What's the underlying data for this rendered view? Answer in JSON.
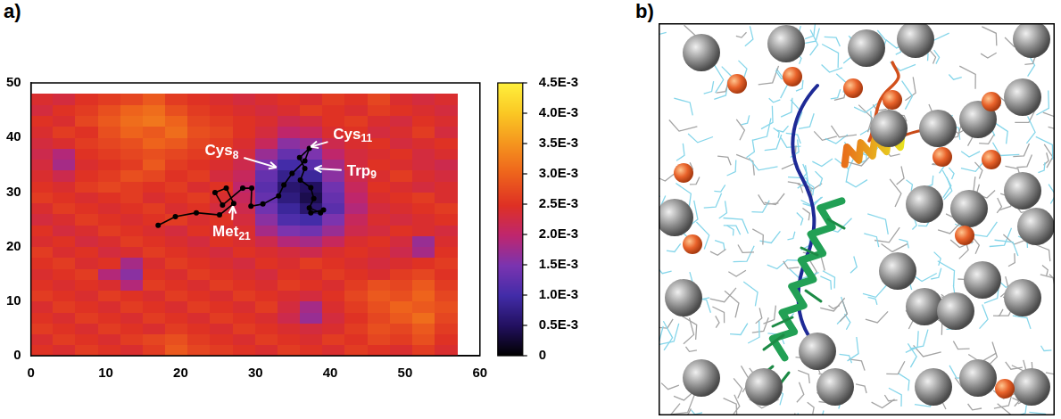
{
  "chart_data": {
    "type": "heatmap",
    "panel_label": "a)",
    "xlim": [
      0,
      60
    ],
    "xticks": [
      0,
      10,
      20,
      30,
      40,
      50,
      60
    ],
    "ylim": [
      0,
      50
    ],
    "yticks": [
      0,
      10,
      20,
      30,
      40,
      50
    ],
    "grid": false,
    "x_edges": [
      0,
      3,
      6,
      9,
      12,
      15,
      18,
      21,
      24,
      27,
      30,
      33,
      36,
      39,
      42,
      45,
      48,
      51,
      54,
      57
    ],
    "y_edges": [
      0,
      2,
      4,
      6,
      8,
      10,
      12,
      14,
      16,
      18,
      20,
      22,
      24,
      26,
      28,
      30,
      32,
      34,
      36,
      38,
      40,
      42,
      44,
      46,
      48
    ],
    "cells": [
      [
        0.0025,
        0.0024,
        0.0026,
        0.0025,
        0.0024,
        0.0026,
        0.0029,
        0.0027,
        0.0026,
        0.0025,
        0.0024,
        0.0026,
        0.0025,
        0.0024,
        0.0026,
        0.0025,
        0.0024,
        0.0026,
        0.0024
      ],
      [
        0.0024,
        0.0026,
        0.0025,
        0.0024,
        0.0026,
        0.0027,
        0.0028,
        0.0026,
        0.0025,
        0.0024,
        0.0026,
        0.0025,
        0.0024,
        0.0026,
        0.0025,
        0.0027,
        0.0026,
        0.0028,
        0.0025
      ],
      [
        0.0026,
        0.0025,
        0.0024,
        0.0026,
        0.0025,
        0.0024,
        0.0026,
        0.0025,
        0.0024,
        0.0026,
        0.0025,
        0.0024,
        0.0023,
        0.0024,
        0.0026,
        0.0028,
        0.0027,
        0.0029,
        0.0026
      ],
      [
        0.0025,
        0.0024,
        0.0026,
        0.0025,
        0.0024,
        0.0026,
        0.0025,
        0.0024,
        0.0026,
        0.0025,
        0.0024,
        0.0022,
        0.0017,
        0.0023,
        0.0025,
        0.0027,
        0.0029,
        0.0031,
        0.0027
      ],
      [
        0.0024,
        0.0026,
        0.0025,
        0.0024,
        0.0026,
        0.0025,
        0.0024,
        0.0026,
        0.0025,
        0.0024,
        0.0026,
        0.0023,
        0.0018,
        0.0024,
        0.0026,
        0.0028,
        0.003,
        0.0029,
        0.0028
      ],
      [
        0.0026,
        0.0025,
        0.0024,
        0.0026,
        0.0025,
        0.0024,
        0.0026,
        0.0025,
        0.0024,
        0.0026,
        0.0025,
        0.0024,
        0.0023,
        0.0025,
        0.0027,
        0.0029,
        0.0028,
        0.003,
        0.0027
      ],
      [
        0.0025,
        0.0024,
        0.0025,
        0.0024,
        0.0019,
        0.0026,
        0.0025,
        0.0024,
        0.0026,
        0.0025,
        0.0024,
        0.0026,
        0.0025,
        0.0024,
        0.0026,
        0.0028,
        0.0027,
        0.0029,
        0.0026
      ],
      [
        0.0024,
        0.0025,
        0.0026,
        0.0019,
        0.0016,
        0.0025,
        0.0024,
        0.0026,
        0.0025,
        0.0024,
        0.0023,
        0.0025,
        0.0024,
        0.0026,
        0.0025,
        0.0024,
        0.0026,
        0.0027,
        0.0025
      ],
      [
        0.0025,
        0.0026,
        0.0024,
        0.0025,
        0.0018,
        0.0024,
        0.0026,
        0.0025,
        0.0024,
        0.0023,
        0.0025,
        0.0024,
        0.0026,
        0.0025,
        0.0024,
        0.0023,
        0.0024,
        0.0025,
        0.0026
      ],
      [
        0.0026,
        0.0024,
        0.0025,
        0.0023,
        0.0024,
        0.0026,
        0.0025,
        0.0024,
        0.0023,
        0.0025,
        0.0024,
        0.0023,
        0.0022,
        0.0024,
        0.0025,
        0.0024,
        0.0022,
        0.0018,
        0.0025
      ],
      [
        0.0024,
        0.0025,
        0.0023,
        0.0024,
        0.0026,
        0.0025,
        0.0024,
        0.0023,
        0.0025,
        0.0024,
        0.0022,
        0.0019,
        0.0018,
        0.0021,
        0.0024,
        0.0025,
        0.0023,
        0.0017,
        0.0024
      ],
      [
        0.0025,
        0.0023,
        0.0024,
        0.0026,
        0.0025,
        0.0024,
        0.0023,
        0.0025,
        0.0024,
        0.0024,
        0.0018,
        0.0015,
        0.0014,
        0.0017,
        0.0022,
        0.0023,
        0.0025,
        0.0024,
        0.0023
      ],
      [
        0.0023,
        0.0024,
        0.0026,
        0.0025,
        0.0024,
        0.0025,
        0.0026,
        0.0024,
        0.0025,
        0.0023,
        0.0016,
        0.0011,
        0.001,
        0.0015,
        0.0021,
        0.0024,
        0.0023,
        0.0024,
        0.0025
      ],
      [
        0.0024,
        0.0026,
        0.0025,
        0.0024,
        0.0025,
        0.0026,
        0.0024,
        0.0025,
        0.0023,
        0.0022,
        0.0014,
        0.0009,
        0.0006,
        0.0012,
        0.0019,
        0.0023,
        0.0024,
        0.0025,
        0.0026
      ],
      [
        0.0026,
        0.0025,
        0.0024,
        0.0025,
        0.0026,
        0.0024,
        0.0025,
        0.0026,
        0.0024,
        0.0021,
        0.0013,
        0.0007,
        0.0004,
        0.0013,
        0.002,
        0.0024,
        0.0025,
        0.0026,
        0.0024
      ],
      [
        0.0025,
        0.0024,
        0.0026,
        0.0027,
        0.0026,
        0.0025,
        0.0026,
        0.0024,
        0.0025,
        0.002,
        0.0012,
        0.0006,
        0.0005,
        0.0014,
        0.0021,
        0.0025,
        0.0024,
        0.0023,
        0.0024
      ],
      [
        0.0024,
        0.0022,
        0.0025,
        0.0026,
        0.0028,
        0.0027,
        0.0025,
        0.0026,
        0.0023,
        0.0021,
        0.0013,
        0.0008,
        0.0009,
        0.0016,
        0.0022,
        0.0024,
        0.0026,
        0.0024,
        0.0023
      ],
      [
        0.0023,
        0.0018,
        0.0024,
        0.0025,
        0.0026,
        0.0029,
        0.0026,
        0.0025,
        0.0024,
        0.0022,
        0.0015,
        0.001,
        0.0012,
        0.0018,
        0.0023,
        0.0025,
        0.0024,
        0.0023,
        0.0022
      ],
      [
        0.0022,
        0.0019,
        0.0025,
        0.0026,
        0.0027,
        0.0028,
        0.0027,
        0.0026,
        0.0025,
        0.0023,
        0.0017,
        0.0013,
        0.0015,
        0.002,
        0.0023,
        0.0024,
        0.0025,
        0.0023,
        0.0024
      ],
      [
        0.0023,
        0.0024,
        0.0026,
        0.0027,
        0.0028,
        0.003,
        0.0029,
        0.0027,
        0.0026,
        0.0024,
        0.0021,
        0.0016,
        0.0017,
        0.0022,
        0.0024,
        0.0025,
        0.0023,
        0.0024,
        0.0025
      ],
      [
        0.0024,
        0.0026,
        0.0025,
        0.0028,
        0.003,
        0.0029,
        0.0031,
        0.0028,
        0.0027,
        0.0025,
        0.0023,
        0.002,
        0.0021,
        0.0024,
        0.0025,
        0.0023,
        0.0024,
        0.0026,
        0.0023
      ],
      [
        0.0025,
        0.0024,
        0.0027,
        0.0029,
        0.0031,
        0.0032,
        0.003,
        0.0027,
        0.0026,
        0.0025,
        0.0024,
        0.0022,
        0.0023,
        0.0025,
        0.0026,
        0.0024,
        0.0023,
        0.0025,
        0.0024
      ],
      [
        0.0023,
        0.0025,
        0.0026,
        0.0028,
        0.003,
        0.0031,
        0.0028,
        0.0026,
        0.0025,
        0.0024,
        0.0023,
        0.0024,
        0.0026,
        0.0025,
        0.0024,
        0.0026,
        0.0025,
        0.0024,
        0.0023
      ],
      [
        0.0024,
        0.0023,
        0.0025,
        0.0026,
        0.0027,
        0.0029,
        0.0026,
        0.0025,
        0.0024,
        0.0023,
        0.0024,
        0.0025,
        0.0024,
        0.0026,
        0.0025,
        0.0027,
        0.0024,
        0.0023,
        0.0024
      ]
    ],
    "colorbar": {
      "range": [
        0,
        0.0045
      ],
      "ticks": [
        0,
        {
          "value": 0.0005,
          "label": "0.5E-3"
        },
        {
          "value": 0.001,
          "label": "1.0E-3"
        },
        {
          "value": 0.0015,
          "label": "1.5E-3"
        },
        {
          "value": 0.002,
          "label": "2.0E-3"
        },
        {
          "value": 0.0025,
          "label": "2.5E-3"
        },
        {
          "value": 0.003,
          "label": "3.0E-3"
        },
        {
          "value": 0.0035,
          "label": "3.5E-3"
        },
        {
          "value": 0.004,
          "label": "4.0E-3"
        },
        {
          "value": 0.0045,
          "label": "4.5E-3"
        }
      ]
    },
    "series": [
      {
        "type": "line",
        "color": "#000000",
        "marker": "circle",
        "x": [
          17.0,
          19.3,
          22.1,
          25.2,
          27.1,
          26.1,
          24.6,
          25.6,
          28.3,
          29.5,
          29.4,
          31.0,
          33.1,
          33.8,
          34.9,
          36.6,
          37.2,
          35.9,
          36.6,
          36.0,
          37.4,
          37.8,
          37.2,
          38.7,
          39.1,
          37.4
        ],
        "values": [
          23.9,
          25.5,
          26.2,
          25.8,
          27.9,
          30.7,
          29.9,
          27.6,
          30.7,
          30.7,
          27.4,
          27.8,
          29.3,
          31.3,
          33.4,
          35.7,
          38.0,
          36.3,
          34.3,
          32.2,
          30.8,
          28.8,
          27.1,
          26.2,
          26.7,
          26.2
        ]
      }
    ],
    "annotations": [
      {
        "text": "Cys8",
        "x": 25.5,
        "y": 37.5,
        "arrow_x": 32.8,
        "arrow_y": 34.5
      },
      {
        "text": "Cys11",
        "x": 43.0,
        "y": 40.5,
        "arrow_x": 37.4,
        "arrow_y": 38.3
      },
      {
        "text": "Trp9",
        "x": 44.2,
        "y": 33.8,
        "arrow_x": 37.9,
        "arrow_y": 34.3
      },
      {
        "text": "Met21",
        "x": 26.8,
        "y": 22.6,
        "arrow_x": 27.0,
        "arrow_y": 27.4
      }
    ]
  },
  "image": {
    "panel_label": "b)"
  }
}
